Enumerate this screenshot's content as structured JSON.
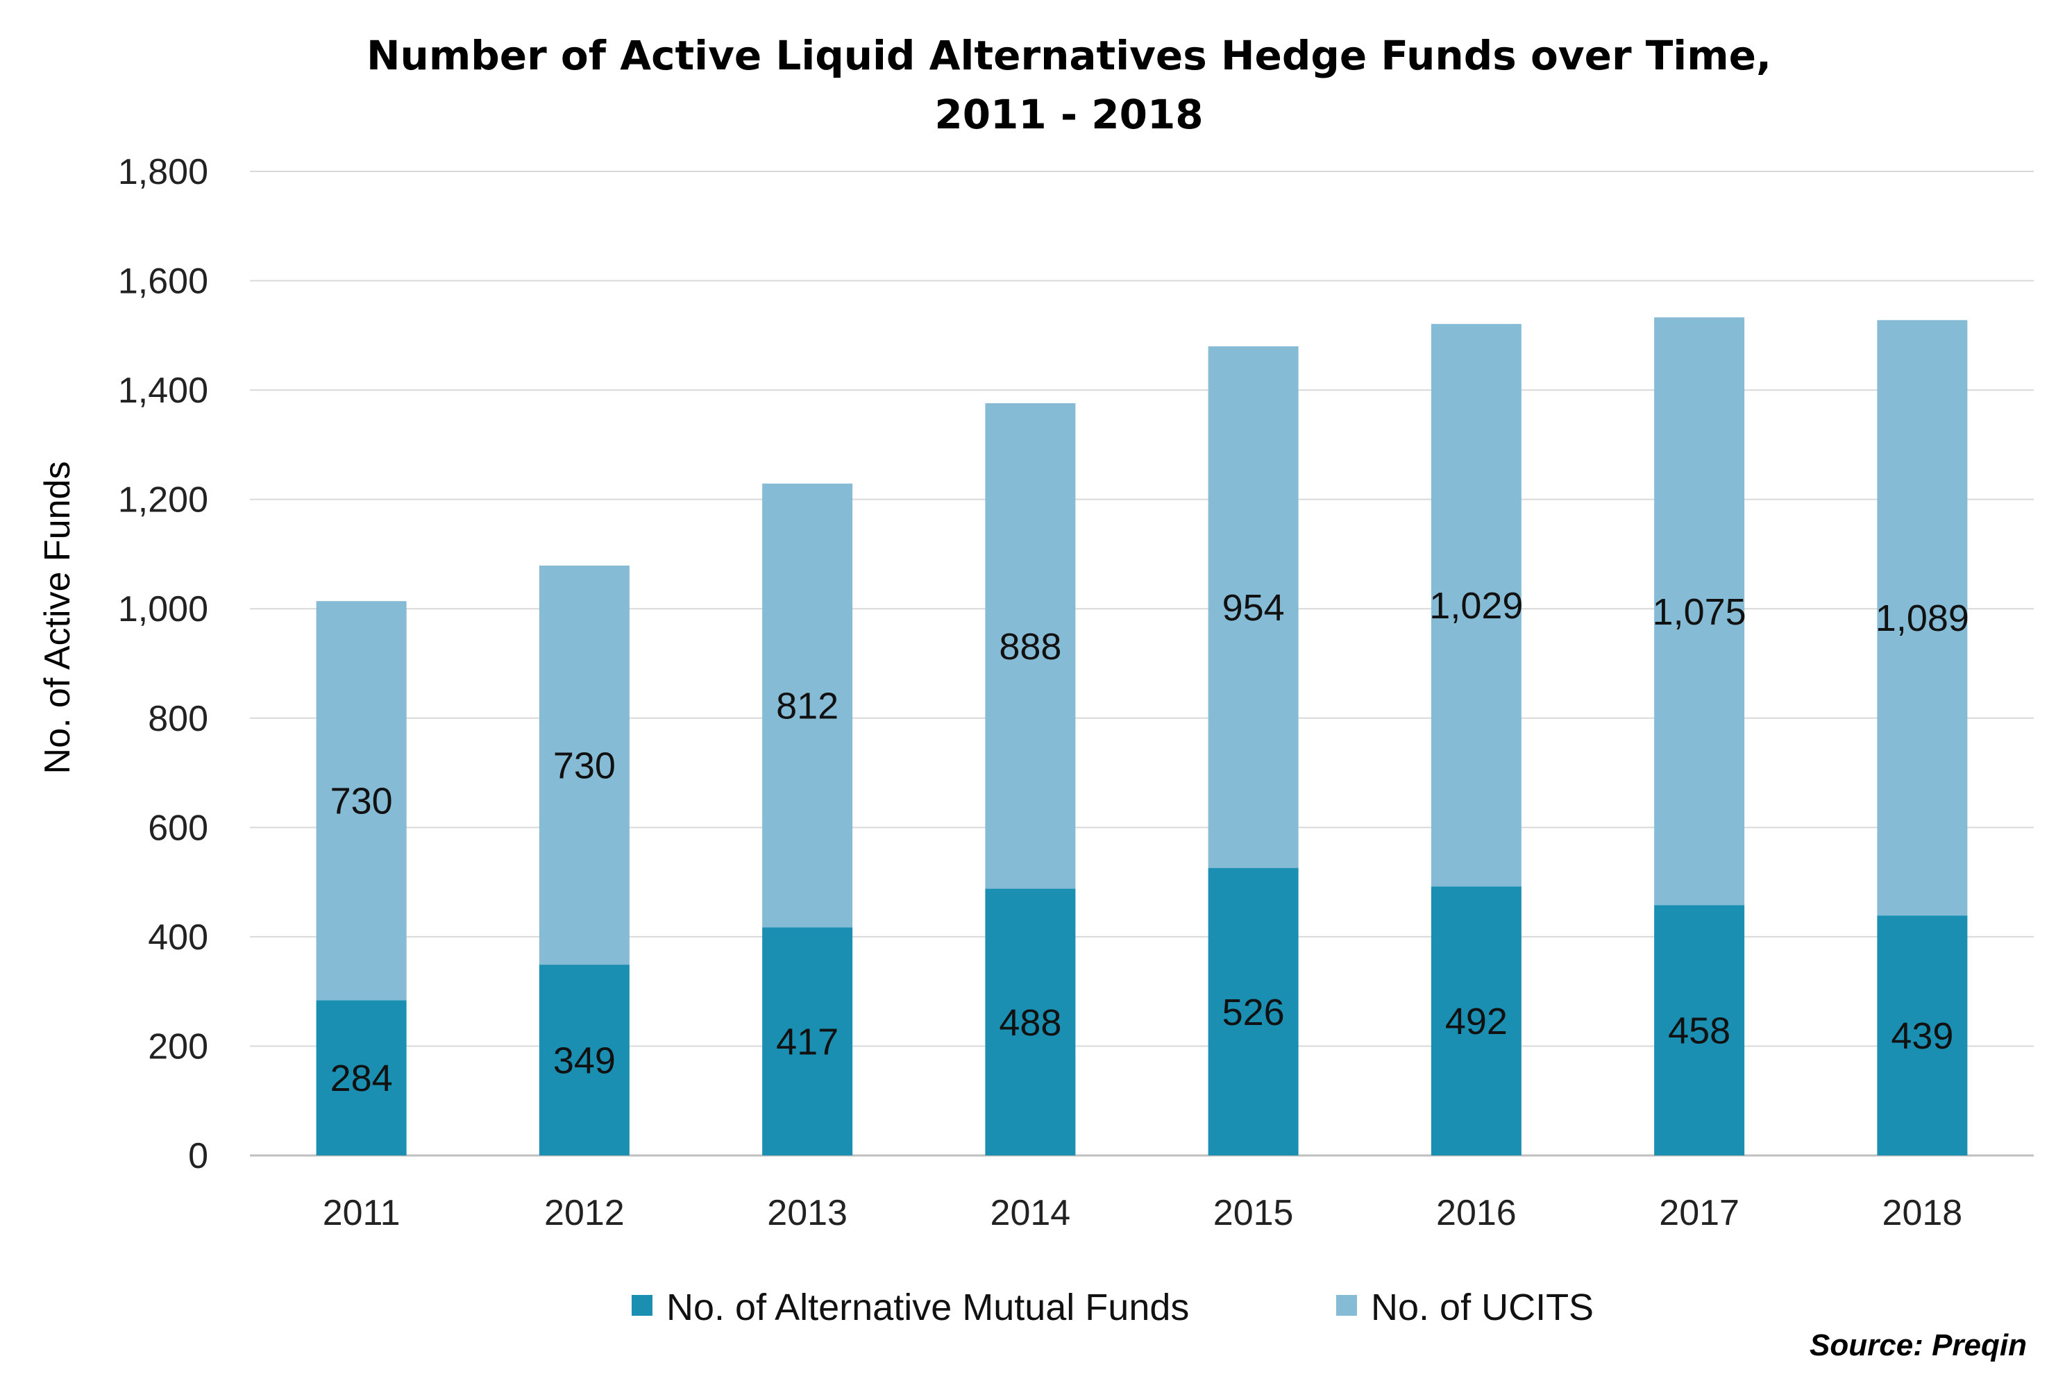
{
  "chart_data": {
    "type": "bar",
    "stacked": true,
    "title": "Number of Active Liquid Alternatives Hedge Funds over Time,",
    "title_line2": "2011 - 2018",
    "ylabel": "No. of Active Funds",
    "xlabel": "",
    "ylim": [
      0,
      1800
    ],
    "yticks": [
      "0",
      "200",
      "400",
      "600",
      "800",
      "1,000",
      "1,200",
      "1,400",
      "1,600",
      "1,800"
    ],
    "ytick_values": [
      0,
      200,
      400,
      600,
      800,
      1000,
      1200,
      1400,
      1600,
      1800
    ],
    "grid": true,
    "legend_position": "bottom",
    "categories": [
      "2011",
      "2012",
      "2013",
      "2014",
      "2015",
      "2016",
      "2017",
      "2018"
    ],
    "series": [
      {
        "name": "No. of Alternative Mutual Funds",
        "color": "#1A8FB2",
        "values": [
          284,
          349,
          417,
          488,
          526,
          492,
          458,
          439
        ],
        "labels": [
          "284",
          "349",
          "417",
          "488",
          "526",
          "492",
          "458",
          "439"
        ]
      },
      {
        "name": "No. of UCITS",
        "color": "#86BBD6",
        "values": [
          730,
          730,
          812,
          888,
          954,
          1029,
          1075,
          1089
        ],
        "labels": [
          "730",
          "730",
          "812",
          "888",
          "954",
          "1,029",
          "1,075",
          "1,089"
        ]
      }
    ],
    "source": "Source: Preqin"
  },
  "colors": {
    "gridline": "#D9D9D9",
    "axis": "#BFBFBF"
  }
}
